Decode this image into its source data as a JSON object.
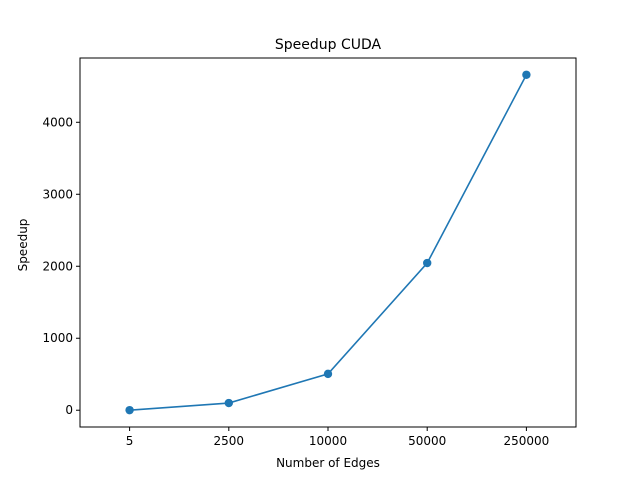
{
  "chart_data": {
    "type": "line",
    "title": "Speedup CUDA",
    "xlabel": "Number of Edges",
    "ylabel": "Speedup",
    "categories": [
      "5",
      "2500",
      "10000",
      "50000",
      "250000"
    ],
    "series": [
      {
        "values": [
          1,
          100,
          505,
          2045,
          4660
        ],
        "color": "#1f77b4",
        "marker": "circle"
      }
    ],
    "yticks": [
      0,
      1000,
      2000,
      3000,
      4000
    ],
    "ylim": [
      -233,
      4893
    ],
    "grid": false,
    "legend": "none"
  }
}
